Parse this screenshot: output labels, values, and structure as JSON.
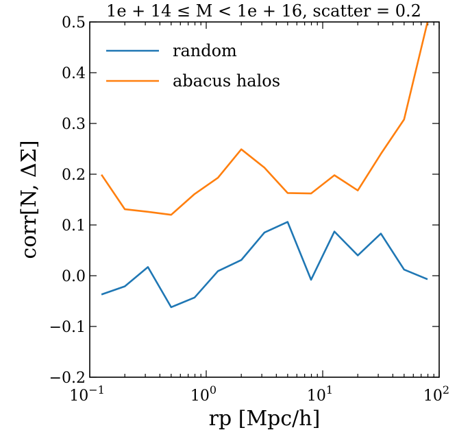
{
  "chart_data": {
    "type": "line",
    "title": "1e + 14 ≤ M < 1e + 16, scatter = 0.2",
    "xlabel": "rp [Mpc/h]",
    "ylabel": "corr[N, ΔΣ]",
    "xscale": "log",
    "xlim": [
      0.1,
      100
    ],
    "ylim": [
      -0.2,
      0.5
    ],
    "grid": false,
    "legend_position": "top-left",
    "x_ticks": [
      {
        "value": 0.1,
        "base": "10",
        "exp": "−1"
      },
      {
        "value": 1,
        "base": "10",
        "exp": "0"
      },
      {
        "value": 10,
        "base": "10",
        "exp": "1"
      },
      {
        "value": 100,
        "base": "10",
        "exp": "2"
      }
    ],
    "y_ticks": [
      {
        "value": -0.2,
        "label": "−0.2"
      },
      {
        "value": -0.1,
        "label": "−0.1"
      },
      {
        "value": 0.0,
        "label": "0.0"
      },
      {
        "value": 0.1,
        "label": "0.1"
      },
      {
        "value": 0.2,
        "label": "0.2"
      },
      {
        "value": 0.3,
        "label": "0.3"
      },
      {
        "value": 0.4,
        "label": "0.4"
      },
      {
        "value": 0.5,
        "label": "0.5"
      }
    ],
    "x": [
      0.126,
      0.2,
      0.316,
      0.5,
      0.794,
      1.26,
      2.0,
      3.16,
      5.0,
      7.94,
      12.6,
      20.0,
      31.6,
      50.0,
      79.4
    ],
    "series": [
      {
        "name": "random",
        "color": "#1f77b4",
        "values": [
          -0.037,
          -0.021,
          0.017,
          -0.062,
          -0.043,
          0.009,
          0.031,
          0.085,
          0.106,
          -0.008,
          0.087,
          0.04,
          0.083,
          0.012,
          -0.007
        ]
      },
      {
        "name": "abacus halos",
        "color": "#ff7f0e",
        "values": [
          0.199,
          0.131,
          0.126,
          0.12,
          0.161,
          0.193,
          0.249,
          0.213,
          0.163,
          0.162,
          0.198,
          0.168,
          0.24,
          0.308,
          0.5
        ]
      }
    ]
  }
}
